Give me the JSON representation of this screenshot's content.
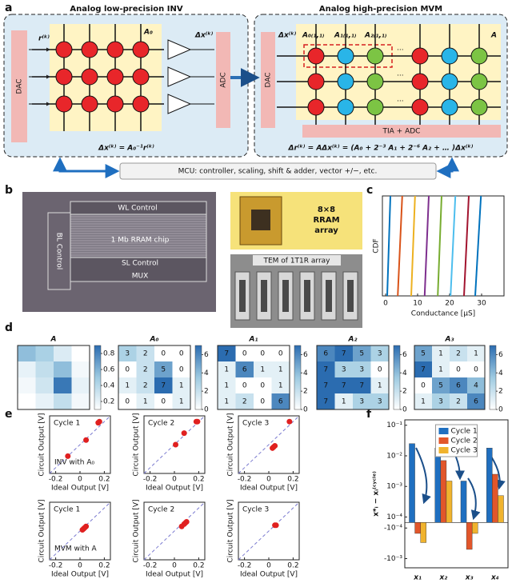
{
  "panel_labels": {
    "a": "a",
    "b": "b",
    "c": "c",
    "d": "d",
    "e": "e",
    "f": "f"
  },
  "panel_a": {
    "left_title": "Analog low-precision INV",
    "right_title": "Analog high-precision MVM",
    "dac": "DAC",
    "adc": "ADC",
    "r_in": "r⁽ᵏ⁾",
    "dx_out": "Δx⁽ᵏ⁾",
    "a0": "A₀",
    "inv_formula": "Δx⁽ᵏ⁾ = A₀⁻¹r⁽ᵏ⁾",
    "dx_in": "Δx⁽ᵏ⁾",
    "a": "A",
    "a0_11": "A₀₍₁,₁₎",
    "a1_11": "A₁₍₁,₁₎",
    "a2_11": "A₂₍₁,₁₎",
    "ellipsis": "...",
    "tia_adc": "TIA + ADC",
    "mvm_formula": "Δr⁽ᵏ⁾ = AΔx⁽ᵏ⁾ = (A₀ + 2⁻³ A₁ + 2⁻⁶ A₂ + … )Δx⁽ᵏ⁾",
    "mcu": "MCU: controller, scaling, shift & adder, vector +/−, etc."
  },
  "panel_b": {
    "wl": "WL Control",
    "bl": "BL Control",
    "chip": "1 Mb RRAM chip",
    "sl": "SL Control",
    "mux": "MUX",
    "array": [
      "8×8",
      "RRAM",
      "array"
    ],
    "tem": "TEM of 1T1R array"
  },
  "chart_data": [
    {
      "type": "line",
      "xlabel": "Conductance [μS]",
      "ylabel": "CDF",
      "xlim": [
        -1,
        37
      ],
      "ylim": [
        0,
        1
      ],
      "xticks": [
        0,
        10,
        20,
        30
      ],
      "series": [
        {
          "color": "#0072bd",
          "x": [
            0.5,
            1.5
          ],
          "values": [
            0,
            1
          ]
        },
        {
          "color": "#d95319",
          "x": [
            3.8,
            5.2
          ],
          "values": [
            0,
            1
          ]
        },
        {
          "color": "#edb120",
          "x": [
            8,
            9.2
          ],
          "values": [
            0,
            1
          ]
        },
        {
          "color": "#7e2f8e",
          "x": [
            12.2,
            13.5
          ],
          "values": [
            0,
            1
          ]
        },
        {
          "color": "#77ac30",
          "x": [
            16.3,
            17.5
          ],
          "values": [
            0,
            1
          ]
        },
        {
          "color": "#4dbeee",
          "x": [
            20.3,
            21.8
          ],
          "values": [
            0,
            1
          ]
        },
        {
          "color": "#a2142f",
          "x": [
            24.5,
            26
          ],
          "values": [
            0,
            1
          ]
        },
        {
          "color": "#0072bd",
          "x": [
            28,
            29.8
          ],
          "values": [
            0,
            1
          ]
        }
      ]
    },
    {
      "type": "heatmap",
      "title": "A",
      "show_values": false,
      "clim": [
        0.1,
        0.9
      ],
      "cticks": [
        0.2,
        0.4,
        0.6,
        0.8
      ],
      "values": [
        [
          0.55,
          0.45,
          0.25,
          0.1
        ],
        [
          0.2,
          0.35,
          0.55,
          0.15
        ],
        [
          0.15,
          0.3,
          0.85,
          0.2
        ],
        [
          0.1,
          0.2,
          0.35,
          0.15
        ]
      ]
    },
    {
      "type": "heatmap",
      "title": "A₀",
      "show_values": true,
      "clim": [
        0,
        7
      ],
      "cticks": [
        0,
        2,
        4,
        6
      ],
      "values": [
        [
          3,
          2,
          0,
          0
        ],
        [
          0,
          2,
          5,
          0
        ],
        [
          1,
          2,
          7,
          1
        ],
        [
          0,
          1,
          0,
          1
        ]
      ]
    },
    {
      "type": "heatmap",
      "title": "A₁",
      "show_values": true,
      "clim": [
        0,
        7
      ],
      "cticks": [
        0,
        2,
        4,
        6
      ],
      "values": [
        [
          7,
          0,
          0,
          0
        ],
        [
          1,
          6,
          1,
          1
        ],
        [
          1,
          0,
          0,
          1
        ],
        [
          1,
          2,
          0,
          6
        ]
      ]
    },
    {
      "type": "heatmap",
      "title": "A₂",
      "show_values": true,
      "clim": [
        0,
        7
      ],
      "cticks": [
        0,
        2,
        4,
        6
      ],
      "values": [
        [
          6,
          7,
          5,
          3
        ],
        [
          7,
          3,
          3,
          0
        ],
        [
          7,
          7,
          7,
          1
        ],
        [
          7,
          1,
          3,
          3
        ]
      ]
    },
    {
      "type": "heatmap",
      "title": "A₃",
      "show_values": true,
      "clim": [
        0,
        7
      ],
      "cticks": [
        0,
        2,
        4,
        6
      ],
      "values": [
        [
          5,
          1,
          2,
          1
        ],
        [
          7,
          1,
          0,
          0
        ],
        [
          0,
          5,
          6,
          4
        ],
        [
          1,
          3,
          2,
          6
        ]
      ]
    },
    {
      "type": "scatter",
      "title": "Cycle 1",
      "annotation": "INV with A₀",
      "xlabel": "Ideal Output [V]",
      "ylabel": "Circuit Output [V]",
      "color": "#e02020",
      "xlim": [
        -0.25,
        0.25
      ],
      "ylim": [
        -0.25,
        0.25
      ],
      "xticks": [
        -0.2,
        0,
        0.2
      ],
      "x": [
        -0.1,
        0.05,
        0.15,
        0.16
      ],
      "values": [
        -0.1,
        0.04,
        0.19,
        0.2
      ]
    },
    {
      "type": "scatter",
      "title": "Cycle 2",
      "xlabel": "Ideal Output [V]",
      "ylabel": "Circuit Output [V]",
      "color": "#e02020",
      "xlim": [
        -0.25,
        0.25
      ],
      "ylim": [
        -0.25,
        0.25
      ],
      "xticks": [
        -0.2,
        0,
        0.2
      ],
      "x": [
        0.01,
        0.08,
        0.18,
        0.19
      ],
      "values": [
        0,
        0.1,
        0.2,
        0.2
      ]
    },
    {
      "type": "scatter",
      "title": "Cycle 3",
      "xlabel": "Ideal Output [V]",
      "ylabel": "Circuit Output [V]",
      "color": "#e02020",
      "xlim": [
        -0.25,
        0.25
      ],
      "ylim": [
        -0.25,
        0.25
      ],
      "xticks": [
        -0.2,
        0,
        0.2
      ],
      "x": [
        0.03,
        0.04,
        0.05,
        0.17
      ],
      "values": [
        -0.03,
        -0.02,
        -0.01,
        0.2
      ]
    },
    {
      "type": "scatter",
      "title": "Cycle 1",
      "annotation": "MVM with A",
      "xlabel": "Ideal Output [V]",
      "ylabel": "Circuit Output [V]",
      "color": "#e02020",
      "xlim": [
        -0.25,
        0.25
      ],
      "ylim": [
        -0.25,
        0.25
      ],
      "xticks": [
        -0.2,
        0,
        0.2
      ],
      "x": [
        0.02,
        0.03,
        0.04,
        0.05
      ],
      "values": [
        0.01,
        0.02,
        0.03,
        0.04
      ]
    },
    {
      "type": "scatter",
      "title": "Cycle 2",
      "xlabel": "Ideal Output [V]",
      "ylabel": "Circuit Output [V]",
      "color": "#e02020",
      "xlim": [
        -0.25,
        0.25
      ],
      "ylim": [
        -0.25,
        0.25
      ],
      "xticks": [
        -0.2,
        0,
        0.2
      ],
      "x": [
        0.06,
        0.08,
        0.09,
        0.1
      ],
      "values": [
        0.04,
        0.06,
        0.07,
        0.08
      ]
    },
    {
      "type": "scatter",
      "title": "Cycle 3",
      "xlabel": "Ideal Output [V]",
      "ylabel": "Circuit Output [V]",
      "color": "#e02020",
      "xlim": [
        -0.25,
        0.25
      ],
      "ylim": [
        -0.25,
        0.25
      ],
      "xticks": [
        -0.2,
        0,
        0.2
      ],
      "x": [
        0.05,
        0.06
      ],
      "values": [
        0.05,
        0.05
      ]
    },
    {
      "type": "bar",
      "yscale": "symlog",
      "linthresh": 0.0001,
      "ylabel": "x*ᵢ − xᵢ⁽ᶜʸᶜˡᵉ⁾",
      "legend": "upper center",
      "categories": [
        "x₁",
        "x₂",
        "x₃",
        "x₄"
      ],
      "ylim": [
        -0.002,
        0.15
      ],
      "yticks": [
        {
          "value": 0.1,
          "label": "10⁻¹"
        },
        {
          "value": 0.01,
          "label": "10⁻²"
        },
        {
          "value": 0.001,
          "label": "10⁻³"
        },
        {
          "value": 0.0001,
          "label": "10⁻⁴"
        },
        {
          "value": -0.0001,
          "label": "-10⁻⁴"
        },
        {
          "value": -0.001,
          "label": "-10⁻³"
        }
      ],
      "series": [
        {
          "name": "Cycle 1",
          "color": "#1f6fc0",
          "values": [
            0.025,
            0.018,
            0.0015,
            0.018
          ]
        },
        {
          "name": "Cycle 2",
          "color": "#e2562a",
          "values": [
            -0.00015,
            0.007,
            -0.0005,
            0.0025
          ]
        },
        {
          "name": "Cycle 3",
          "color": "#f0b32e",
          "values": [
            -0.0003,
            0.0015,
            -0.00015,
            0.0005
          ]
        }
      ]
    }
  ]
}
